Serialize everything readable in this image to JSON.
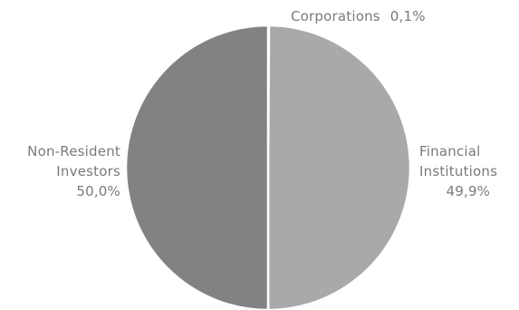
{
  "chart_data": {
    "type": "pie",
    "title": "",
    "slices": [
      {
        "label": "Corporations",
        "value": 0.1,
        "value_label": "0,1%",
        "color": "#a9a9aa"
      },
      {
        "label_lines": [
          "Financial",
          "Institutions"
        ],
        "value": 49.9,
        "value_label": "49,9%",
        "color": "#a8a9ab"
      },
      {
        "label_lines": [
          "Non-Resident",
          "Investors"
        ],
        "value": 50.0,
        "value_label": "50,0%",
        "color": "#818284"
      }
    ],
    "start_angle_deg": 0,
    "direction": "clockwise",
    "legend": "none"
  }
}
